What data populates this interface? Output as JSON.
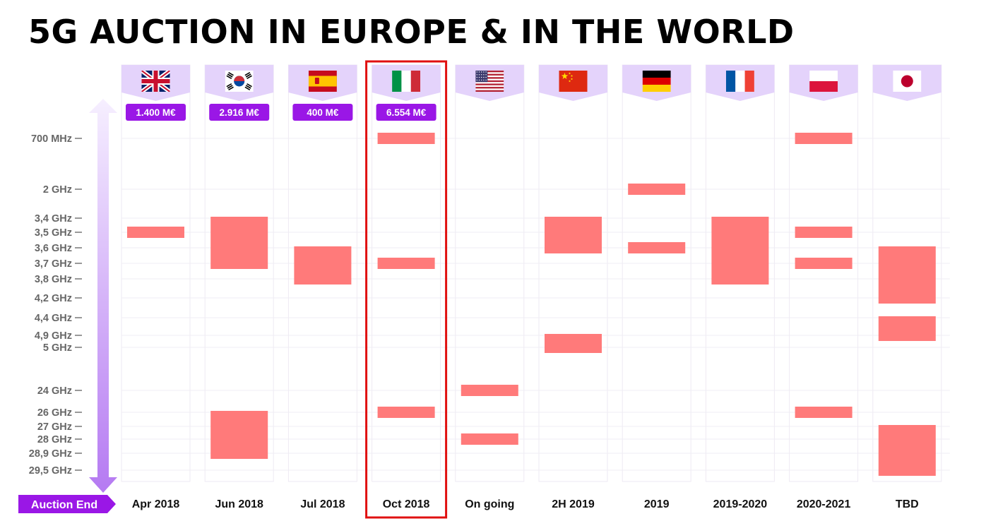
{
  "title": "5G AUCTION IN EUROPE & IN THE WORLD",
  "colors": {
    "band": "#ff7a7a",
    "flag_header": "#e4d3fb",
    "price_badge": "#9a17e6",
    "highlight": "#e01010",
    "auction_end_badge": "#9a17e6"
  },
  "auction_end_label": "Auction End",
  "chart_data": {
    "type": "range-bar",
    "y_axis": {
      "scale": "categorical",
      "ticks": [
        "700 MHz",
        "2 GHz",
        "3,4 GHz",
        "3,5 GHz",
        "3,6 GHz",
        "3,7 GHz",
        "3,8 GHz",
        "4,2 GHz",
        "4,4 GHz",
        "4,9 GHz",
        "5 GHz",
        "24 GHz",
        "26 GHz",
        "27 GHz",
        "28 GHz",
        "28,9 GHz",
        "29,5 GHz"
      ]
    },
    "highlighted_country": "Italy",
    "countries": [
      {
        "flag": "uk-flag",
        "price": "1.400 M€",
        "date": "Apr 2018",
        "bands": [
          [
            "3,5 GHz",
            "3,5 GHz"
          ]
        ]
      },
      {
        "flag": "south-korea-flag",
        "price": "2.916 M€",
        "date": "Jun 2018",
        "bands": [
          [
            "3,4 GHz",
            "3,7 GHz"
          ],
          [
            "26 GHz",
            "28,9 GHz"
          ]
        ]
      },
      {
        "flag": "spain-flag",
        "price": "400 M€",
        "date": "Jul 2018",
        "bands": [
          [
            "3,6 GHz",
            "3,8 GHz"
          ]
        ]
      },
      {
        "flag": "italy-flag",
        "price": "6.554 M€",
        "date": "Oct 2018",
        "bands": [
          [
            "700 MHz",
            "700 MHz"
          ],
          [
            "3,7 GHz",
            "3,7 GHz"
          ],
          [
            "26 GHz",
            "26 GHz"
          ]
        ]
      },
      {
        "flag": "usa-flag",
        "price": "",
        "date": "On going",
        "bands": [
          [
            "24 GHz",
            "24 GHz"
          ],
          [
            "28 GHz",
            "28 GHz"
          ]
        ]
      },
      {
        "flag": "china-flag",
        "price": "",
        "date": "2H 2019",
        "bands": [
          [
            "3,4 GHz",
            "3,6 GHz"
          ],
          [
            "4,9 GHz",
            "5 GHz"
          ]
        ]
      },
      {
        "flag": "germany-flag",
        "price": "",
        "date": "2019",
        "bands": [
          [
            "2 GHz",
            "2 GHz"
          ],
          [
            "3,6 GHz",
            "3,6 GHz"
          ]
        ]
      },
      {
        "flag": "france-flag",
        "price": "",
        "date": "2019-2020",
        "bands": [
          [
            "3,4 GHz",
            "3,8 GHz"
          ]
        ]
      },
      {
        "flag": "poland-flag",
        "price": "",
        "date": "2020-2021",
        "bands": [
          [
            "700 MHz",
            "700 MHz"
          ],
          [
            "3,5 GHz",
            "3,5 GHz"
          ],
          [
            "3,7 GHz",
            "3,7 GHz"
          ],
          [
            "26 GHz",
            "26 GHz"
          ]
        ]
      },
      {
        "flag": "japan-flag",
        "price": "",
        "date": "TBD",
        "bands": [
          [
            "3,6 GHz",
            "4,2 GHz"
          ],
          [
            "4,4 GHz",
            "4,9 GHz"
          ],
          [
            "27 GHz",
            "29,5 GHz"
          ]
        ]
      }
    ]
  }
}
